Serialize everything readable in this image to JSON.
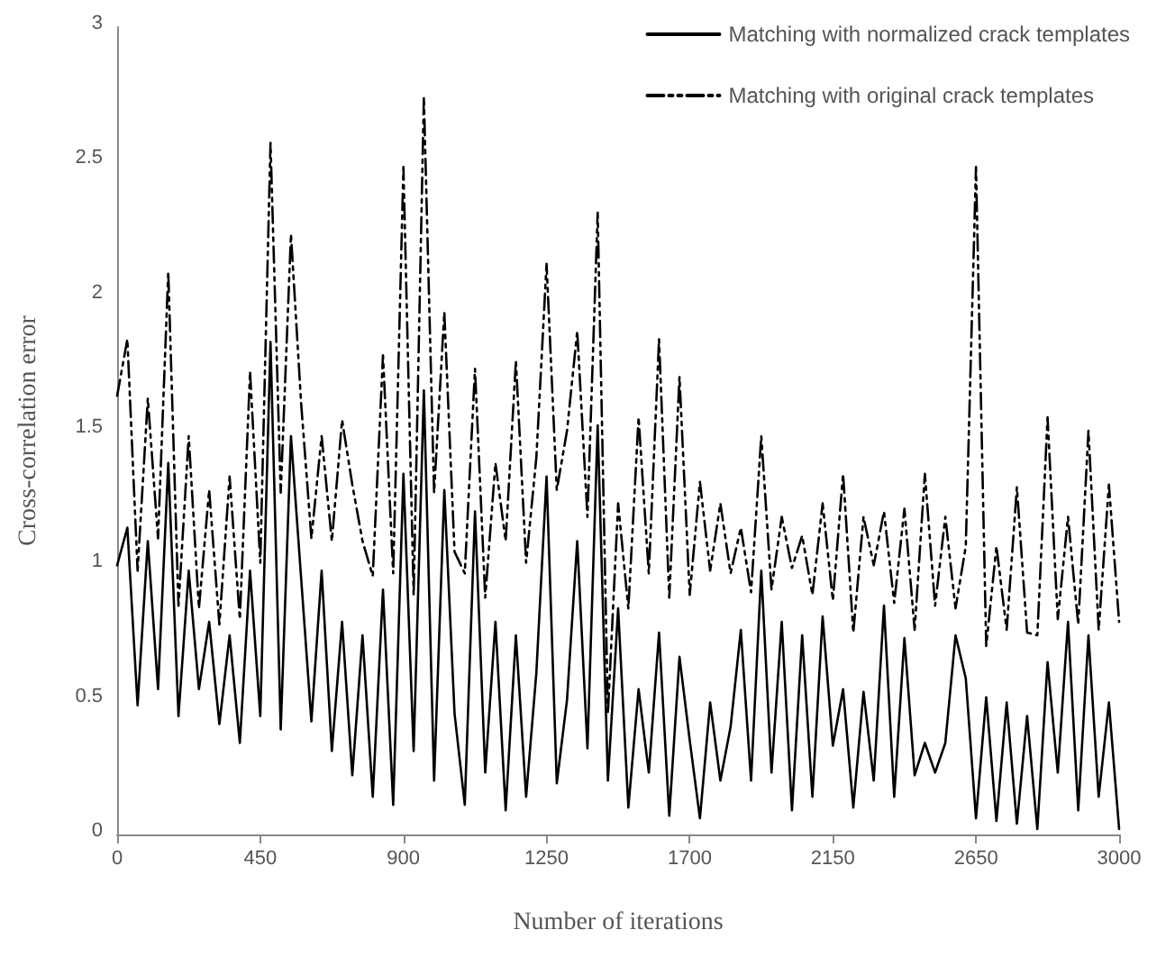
{
  "chart_data": {
    "type": "line",
    "xlabel": "Number of iterations",
    "ylabel": "Cross-correlation error",
    "categories": [
      "0",
      null,
      null,
      null,
      null,
      null,
      null,
      null,
      null,
      null,
      null,
      null,
      null,
      null,
      "450",
      null,
      null,
      null,
      null,
      null,
      null,
      null,
      null,
      null,
      null,
      null,
      null,
      null,
      "900",
      null,
      null,
      null,
      null,
      null,
      null,
      null,
      null,
      null,
      null,
      null,
      null,
      null,
      "1250",
      null,
      null,
      null,
      null,
      null,
      null,
      null,
      null,
      null,
      null,
      null,
      null,
      null,
      "1700",
      null,
      null,
      null,
      null,
      null,
      null,
      null,
      null,
      null,
      null,
      null,
      null,
      null,
      "2150",
      null,
      null,
      null,
      null,
      null,
      null,
      null,
      null,
      null,
      null,
      null,
      null,
      null,
      "2650",
      null,
      null,
      null,
      null,
      null,
      null,
      null,
      null,
      null,
      null,
      null,
      null,
      null,
      "3000"
    ],
    "series": [
      {
        "name": "Matching with normalized crack templates",
        "color": "#000000",
        "line_style": "solid",
        "values": [
          1.0,
          1.14,
          0.48,
          1.09,
          0.54,
          1.38,
          0.44,
          0.98,
          0.54,
          0.79,
          0.41,
          0.74,
          0.34,
          0.98,
          0.44,
          1.83,
          0.39,
          1.48,
          0.95,
          0.42,
          0.98,
          0.31,
          0.79,
          0.22,
          0.74,
          0.14,
          0.91,
          0.11,
          1.34,
          0.31,
          1.65,
          0.2,
          1.28,
          0.45,
          0.11,
          1.2,
          0.23,
          0.79,
          0.09,
          0.74,
          0.14,
          0.6,
          1.33,
          0.19,
          0.5,
          1.09,
          0.32,
          1.52,
          0.2,
          0.84,
          0.1,
          0.54,
          0.23,
          0.75,
          0.07,
          0.66,
          0.35,
          0.06,
          0.49,
          0.2,
          0.4,
          0.76,
          0.2,
          0.98,
          0.23,
          0.79,
          0.09,
          0.74,
          0.14,
          0.81,
          0.33,
          0.54,
          0.1,
          0.53,
          0.2,
          0.85,
          0.14,
          0.73,
          0.22,
          0.34,
          0.23,
          0.34,
          0.74,
          0.58,
          0.06,
          0.51,
          0.05,
          0.49,
          0.04,
          0.44,
          0.02,
          0.64,
          0.23,
          0.79,
          0.09,
          0.74,
          0.14,
          0.49,
          0.02
        ]
      },
      {
        "name": "Matching with original crack templates",
        "color": "#000000",
        "line_style": "dashed",
        "values": [
          1.63,
          1.84,
          0.98,
          1.62,
          1.1,
          2.09,
          0.85,
          1.48,
          0.84,
          1.28,
          0.78,
          1.33,
          0.8,
          1.72,
          1.01,
          2.57,
          1.27,
          2.23,
          1.6,
          1.1,
          1.48,
          1.09,
          1.54,
          1.3,
          1.09,
          0.96,
          1.78,
          0.97,
          2.48,
          0.89,
          2.74,
          1.27,
          1.94,
          1.05,
          0.97,
          1.73,
          0.88,
          1.38,
          1.09,
          1.76,
          1.01,
          1.4,
          2.12,
          1.28,
          1.5,
          1.87,
          1.18,
          2.31,
          0.45,
          1.23,
          0.84,
          1.55,
          0.97,
          1.84,
          0.88,
          1.7,
          0.89,
          1.31,
          0.98,
          1.23,
          0.97,
          1.14,
          0.9,
          1.48,
          0.91,
          1.18,
          0.99,
          1.11,
          0.89,
          1.23,
          0.87,
          1.34,
          0.75,
          1.18,
          1.0,
          1.2,
          0.86,
          1.21,
          0.76,
          1.34,
          0.85,
          1.18,
          0.84,
          1.07,
          2.48,
          0.7,
          1.07,
          0.76,
          1.29,
          0.75,
          0.74,
          1.55,
          0.8,
          1.18,
          0.78,
          1.5,
          0.76,
          1.3,
          0.79
        ]
      }
    ],
    "ylim": [
      0,
      3
    ],
    "yticks": [
      0,
      0.5,
      1,
      1.5,
      2,
      2.5,
      3
    ],
    "grid": false,
    "legend": "top right",
    "marker": "none"
  }
}
